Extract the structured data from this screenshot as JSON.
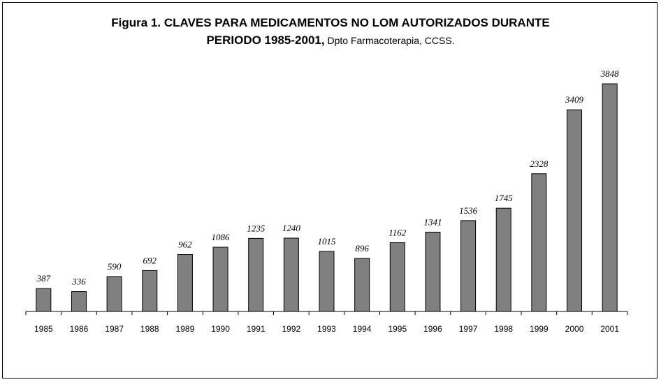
{
  "title": {
    "line1": "Figura 1. CLAVES PARA MEDICAMENTOS NO LOM AUTORIZADOS DURANTE",
    "line2_main": "PERIODO 1985-2001,",
    "line2_sub": " Dpto Farmacoterapia, CCSS."
  },
  "chart_data": {
    "type": "bar",
    "categories": [
      "1985",
      "1986",
      "1987",
      "1988",
      "1989",
      "1990",
      "1991",
      "1992",
      "1993",
      "1994",
      "1995",
      "1996",
      "1997",
      "1998",
      "1999",
      "2000",
      "2001"
    ],
    "values": [
      387,
      336,
      590,
      692,
      962,
      1086,
      1235,
      1240,
      1015,
      896,
      1162,
      1341,
      1536,
      1745,
      2328,
      3409,
      3848
    ],
    "title": "Figura 1. CLAVES PARA MEDICAMENTOS NO LOM AUTORIZADOS DURANTE PERIODO 1985-2001, Dpto Farmacoterapia, CCSS.",
    "xlabel": "",
    "ylabel": "",
    "ylim": [
      0,
      3848
    ],
    "grid": false,
    "legend": "none",
    "data_labels": true,
    "bar_color": "#808080"
  }
}
